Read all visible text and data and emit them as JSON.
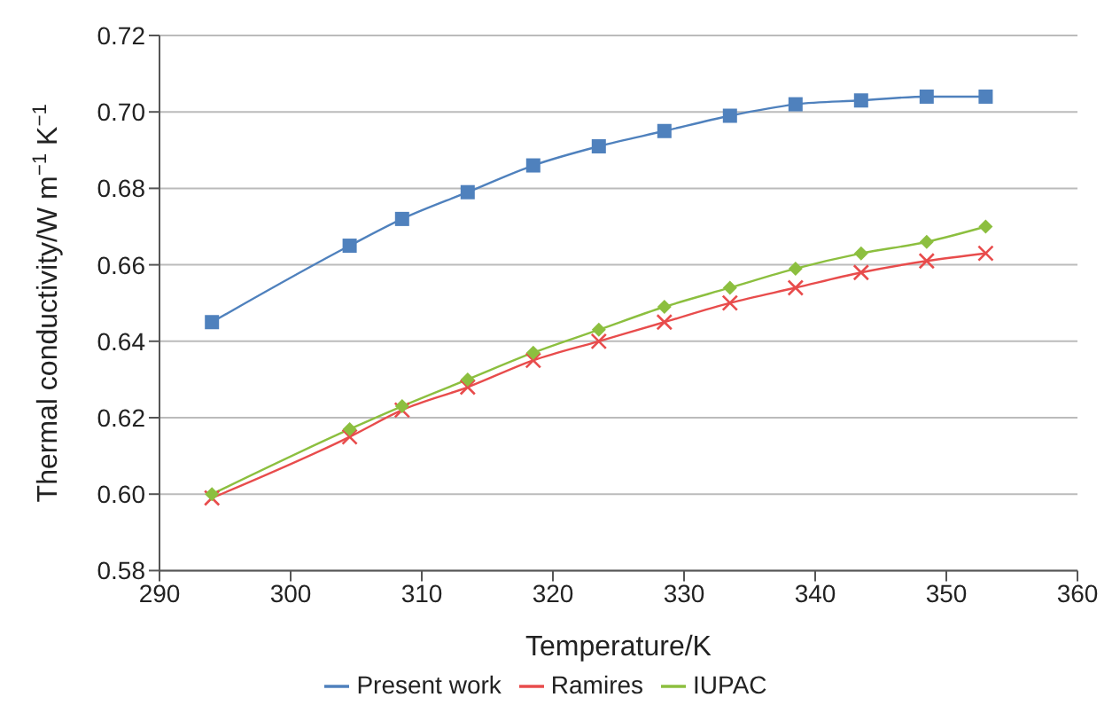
{
  "chart_data": {
    "type": "line",
    "xlabel": "Temperature/K",
    "ylabel": "Thermal conductivity/W m$^{−1}$ K$^{−1}$",
    "x": [
      294,
      304.5,
      308.5,
      313.5,
      318.5,
      323.5,
      328.5,
      333.5,
      338.5,
      343.5,
      348.5,
      353
    ],
    "series": [
      {
        "name": "Present work",
        "color": "#4f81bd",
        "marker": "square",
        "values": [
          0.645,
          0.665,
          0.672,
          0.679,
          0.686,
          0.691,
          0.695,
          0.699,
          0.702,
          0.703,
          0.704,
          0.704
        ]
      },
      {
        "name": "Ramires",
        "color": "#e84c4c",
        "marker": "cross",
        "values": [
          0.599,
          0.615,
          0.622,
          0.628,
          0.635,
          0.64,
          0.645,
          0.65,
          0.654,
          0.658,
          0.661,
          0.663
        ]
      },
      {
        "name": "IUPAC",
        "color": "#8cbf3f",
        "marker": "diamond",
        "values": [
          0.6,
          0.617,
          0.623,
          0.63,
          0.637,
          0.643,
          0.649,
          0.654,
          0.659,
          0.663,
          0.666,
          0.67
        ]
      }
    ],
    "xlim": [
      290,
      360
    ],
    "xticks": [
      290,
      300,
      310,
      320,
      330,
      340,
      350,
      360
    ],
    "ylim": [
      0.58,
      0.72
    ],
    "yticks": [
      0.58,
      {
        "value": 0.6,
        "label": "0.60"
      },
      0.62,
      0.64,
      0.66,
      0.68,
      {
        "value": 0.7,
        "label": "0.70"
      },
      0.72
    ],
    "grid": "y",
    "legend": "bottom",
    "line_style": "solid"
  }
}
